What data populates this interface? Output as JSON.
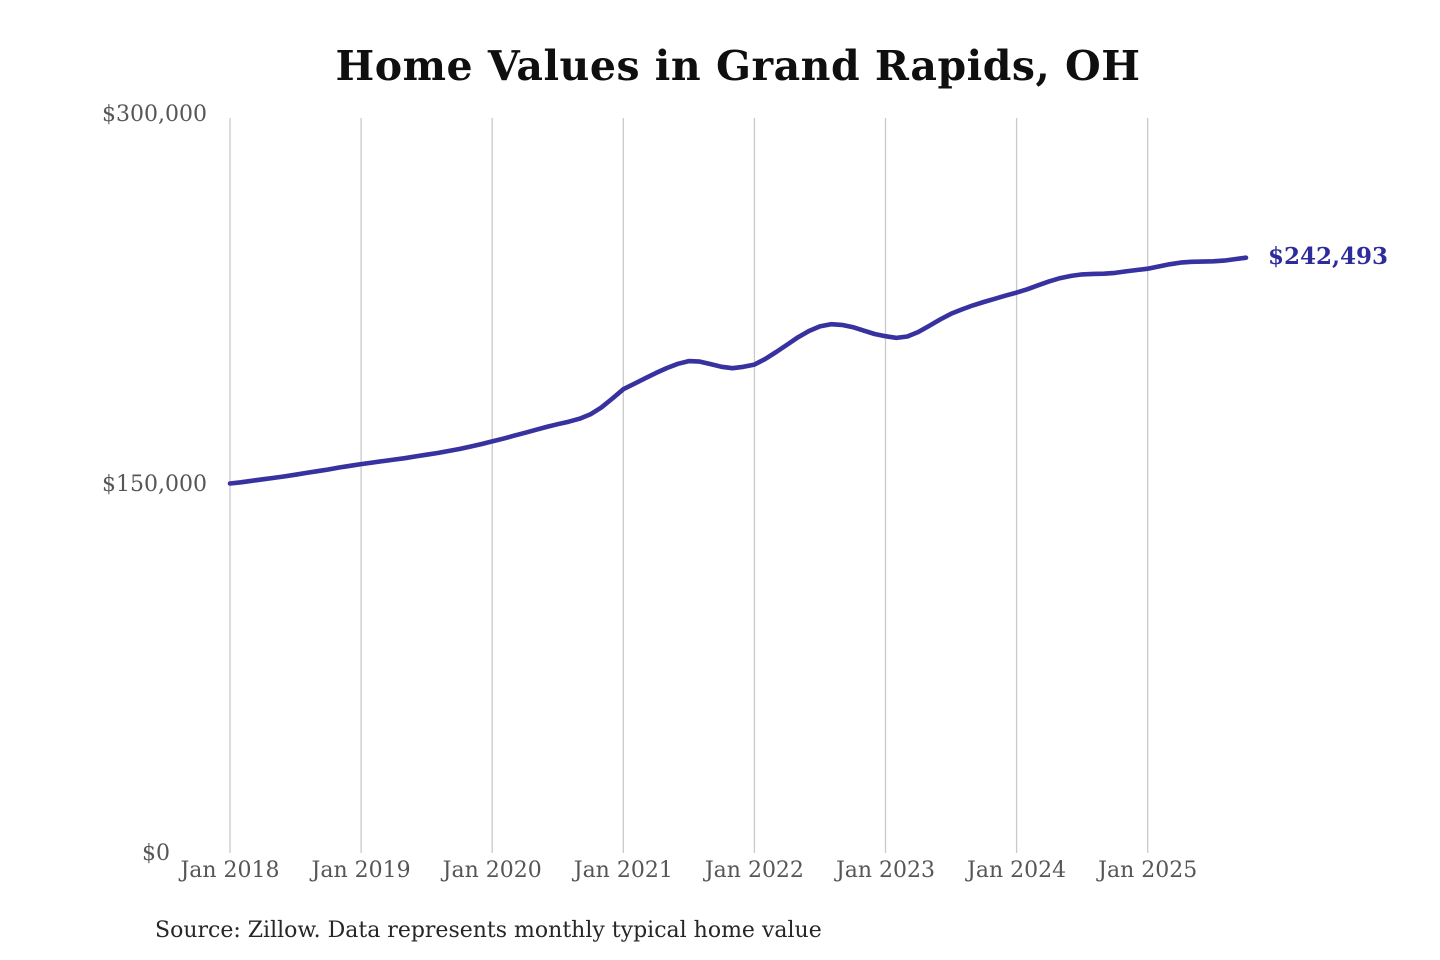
{
  "title": "Home Values in Grand Rapids, OH",
  "current_value_label": "$242,493",
  "source_note": "Source: Zillow. Data represents monthly typical home value",
  "colors": {
    "line": "#37329f",
    "current_value_text": "#2e2b9a",
    "grid": "#c9c9c9",
    "axis_text": "#565656",
    "title_text": "#0f0f0f",
    "source_text": "#262626",
    "background": "#ffffff"
  },
  "chart_data": {
    "type": "line",
    "title": "Home Values in Grand Rapids, OH",
    "x_unit": "month",
    "x_range": [
      "Jan 2018",
      "Oct 2025"
    ],
    "x_tick_labels": [
      "Jan 2018",
      "Jan 2019",
      "Jan 2020",
      "Jan 2021",
      "Jan 2022",
      "Jan 2023",
      "Jan 2024",
      "Jan 2025"
    ],
    "x_tick_month_indices": [
      0,
      12,
      24,
      36,
      48,
      60,
      72,
      84
    ],
    "y_ticks": [
      0,
      150000,
      300000
    ],
    "y_tick_labels": [
      "$0",
      "$150,000",
      "$300,000"
    ],
    "ylim": [
      0,
      300000
    ],
    "grid": "vertical",
    "legend": "none",
    "final_value": 242493,
    "series": [
      {
        "name": "Typical home value",
        "values": [
          150800,
          151300,
          151900,
          152500,
          153100,
          153700,
          154400,
          155100,
          155800,
          156500,
          157300,
          158000,
          158700,
          159300,
          159900,
          160500,
          161100,
          161800,
          162500,
          163200,
          164000,
          164800,
          165800,
          166800,
          167900,
          169000,
          170200,
          171400,
          172600,
          173800,
          174900,
          175900,
          177100,
          178900,
          181700,
          185300,
          189100,
          191300,
          193500,
          195700,
          197700,
          199400,
          200500,
          200300,
          199300,
          198200,
          197600,
          198200,
          199100,
          201400,
          204200,
          207200,
          210200,
          212700,
          214600,
          215500,
          215200,
          214300,
          212900,
          211500,
          210600,
          209900,
          210500,
          212300,
          214800,
          217400,
          219700,
          221500,
          223100,
          224500,
          225800,
          227100,
          228300,
          229700,
          231300,
          232900,
          234200,
          235100,
          235700,
          235900,
          236000,
          236300,
          236900,
          237500,
          238000,
          238900,
          239800,
          240500,
          240800,
          240900,
          241000,
          241300,
          241900,
          242493
        ]
      }
    ]
  }
}
